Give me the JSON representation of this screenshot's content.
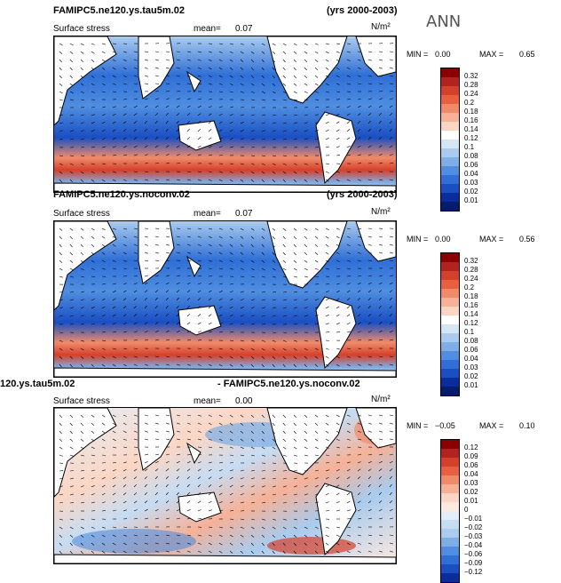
{
  "season": "ANN",
  "panels": [
    {
      "title_left": "FAMIPC5.ne120.ys.tau5m.02",
      "title_right": "(yrs 2000-2003)",
      "subtitle": "Surface stress",
      "mean_label": "mean=",
      "mean_value": "0.07",
      "unit": "N/m²",
      "min_label": "MIN =",
      "min_value": "0.00",
      "max_label": "MAX =",
      "max_value": "0.65",
      "levels": [
        "0.32",
        "0.28",
        "0.24",
        "0.2",
        "0.18",
        "0.16",
        "0.14",
        "0.12",
        "0.1",
        "0.08",
        "0.06",
        "0.04",
        "0.03",
        "0.02",
        "0.01"
      ],
      "colors": [
        "#8b0000",
        "#b2221e",
        "#d5402a",
        "#e8603f",
        "#f08b6a",
        "#f6b197",
        "#fbd6c4",
        "#ffffff",
        "#d4e6f5",
        "#a9cbee",
        "#7eaee6",
        "#4f8ee0",
        "#2f6fd6",
        "#1a4fc2",
        "#0a2d9c",
        "#061a6e"
      ]
    },
    {
      "title_left": "FAMIPC5.ne120.ys.noconv.02",
      "title_right": "(yrs 2000-2003)",
      "subtitle": "Surface stress",
      "mean_label": "mean=",
      "mean_value": "0.07",
      "unit": "N/m²",
      "min_label": "MIN =",
      "min_value": "0.00",
      "max_label": "MAX =",
      "max_value": "0.56",
      "levels": [
        "0.32",
        "0.28",
        "0.24",
        "0.2",
        "0.18",
        "0.16",
        "0.14",
        "0.12",
        "0.1",
        "0.08",
        "0.06",
        "0.04",
        "0.03",
        "0.02",
        "0.01"
      ],
      "colors": [
        "#8b0000",
        "#b2221e",
        "#d5402a",
        "#e8603f",
        "#f08b6a",
        "#f6b197",
        "#fbd6c4",
        "#ffffff",
        "#d4e6f5",
        "#a9cbee",
        "#7eaee6",
        "#4f8ee0",
        "#2f6fd6",
        "#1a4fc2",
        "#0a2d9c",
        "#061a6e"
      ]
    },
    {
      "title_left": "120.ys.tau5m.02",
      "title_right": "- FAMIPC5.ne120.ys.noconv.02",
      "subtitle": "Surface stress",
      "mean_label": "mean=",
      "mean_value": "0.00",
      "unit": "N/m²",
      "min_label": "MIN =",
      "min_value": "−0.05",
      "max_label": "MAX =",
      "max_value": "0.10",
      "levels": [
        "0.12",
        "0.09",
        "0.06",
        "0.04",
        "0.03",
        "0.02",
        "0.01",
        "0",
        "−0.01",
        "−0.02",
        "−0.03",
        "−0.04",
        "−0.06",
        "−0.09",
        "−0.12"
      ],
      "colors": [
        "#8b0000",
        "#b2221e",
        "#d5402a",
        "#e8603f",
        "#f08b6a",
        "#f6b197",
        "#fbd6c4",
        "#fde9df",
        "#e3eef9",
        "#c6dcf3",
        "#a9cbee",
        "#7eaee6",
        "#4f8ee0",
        "#2f6fd6",
        "#1a4fc2",
        "#0a2d9c"
      ]
    }
  ]
}
